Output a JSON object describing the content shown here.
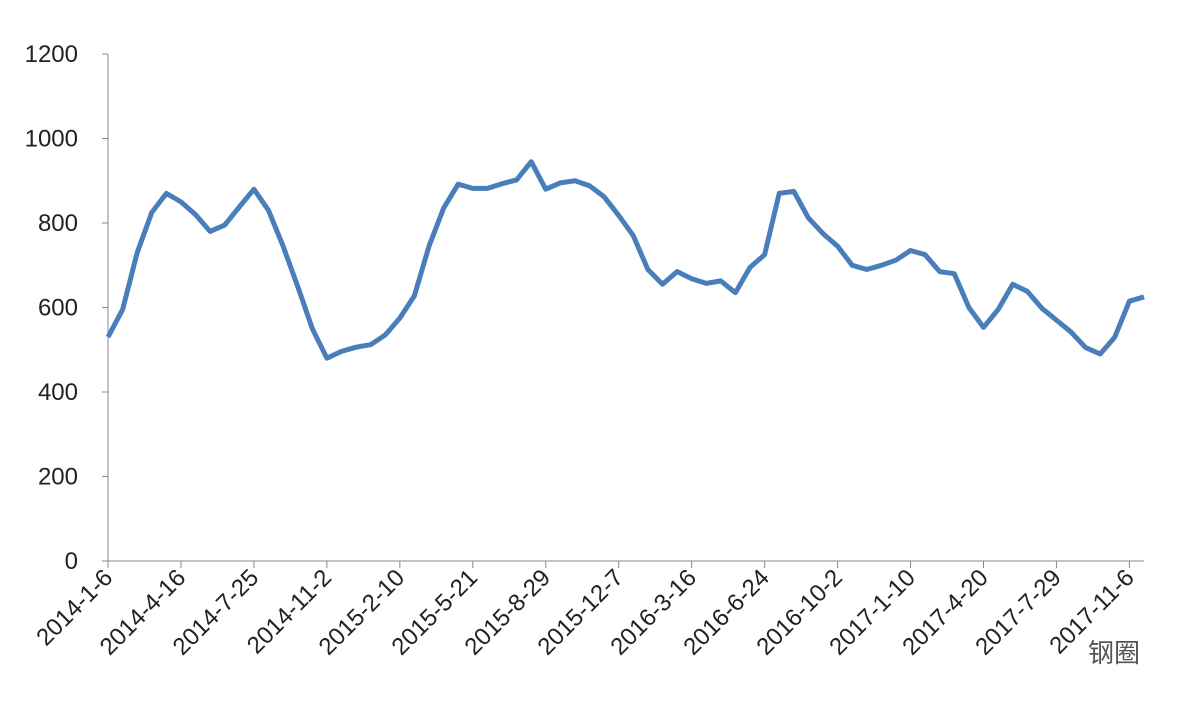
{
  "chart_data": {
    "type": "line",
    "categories": [
      "2014-1-6",
      null,
      null,
      null,
      null,
      "2014-4-16",
      null,
      null,
      null,
      null,
      "2014-7-25",
      null,
      null,
      null,
      null,
      "2014-11-2",
      null,
      null,
      null,
      null,
      "2015-2-10",
      null,
      null,
      null,
      null,
      "2015-5-21",
      null,
      null,
      null,
      null,
      "2015-8-29",
      null,
      null,
      null,
      null,
      "2015-12-7",
      null,
      null,
      null,
      null,
      "2016-3-16",
      null,
      null,
      null,
      null,
      "2016-6-24",
      null,
      null,
      null,
      null,
      "2016-10-2",
      null,
      null,
      null,
      null,
      "2017-1-10",
      null,
      null,
      null,
      null,
      "2017-4-20",
      null,
      null,
      null,
      null,
      "2017-7-29",
      null,
      null,
      null,
      null,
      "2017-11-6",
      null
    ],
    "values": [
      530,
      595,
      730,
      825,
      870,
      850,
      820,
      780,
      795,
      838,
      880,
      830,
      745,
      650,
      550,
      480,
      496,
      506,
      512,
      535,
      575,
      628,
      745,
      835,
      892,
      882,
      882,
      893,
      902,
      945,
      880,
      895,
      900,
      888,
      862,
      818,
      770,
      690,
      655,
      685,
      668,
      657,
      663,
      635,
      695,
      725,
      870,
      875,
      812,
      775,
      745,
      700,
      690,
      700,
      712,
      735,
      725,
      685,
      680,
      600,
      553,
      595,
      655,
      638,
      598,
      570,
      542,
      505,
      490,
      530,
      615,
      625
    ],
    "color": "#4a7ebb",
    "ylim": [
      0,
      1200
    ],
    "yticks": [
      0,
      200,
      400,
      600,
      800,
      1000,
      1200
    ],
    "grid": false,
    "watermark": "钢圈"
  }
}
